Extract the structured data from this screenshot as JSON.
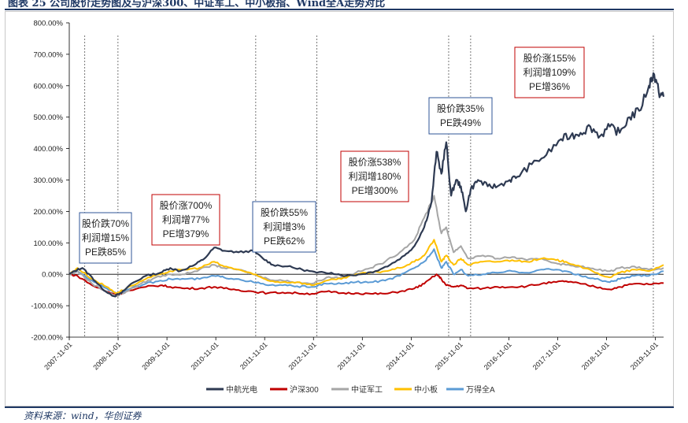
{
  "title": "图表 25 公司股价走势图及与沪深300、中证军工、中小板指、Wind全A走势对比",
  "source": "资料来源：wind，华创证券",
  "colors": {
    "zhonghang": "#2e3a52",
    "hushen300": "#c00000",
    "junggong": "#a6a6a6",
    "zhongxiao": "#ffc000",
    "wande": "#5b9bd5",
    "annotation_red": "#c00000",
    "annotation_blue": "#2f5597"
  },
  "chart_data": {
    "type": "line",
    "title": "",
    "xlabel": "",
    "ylabel": "",
    "ylim": [
      -200,
      800
    ],
    "yticks": [
      -200,
      -100,
      0,
      100,
      200,
      300,
      400,
      500,
      600,
      700,
      800
    ],
    "ytick_labels": [
      "-200.00%",
      "-100.00%",
      "0.00%",
      "100.00%",
      "200.00%",
      "300.00%",
      "400.00%",
      "500.00%",
      "600.00%",
      "700.00%",
      "800.00%"
    ],
    "xlim": [
      2007.833,
      2020.0
    ],
    "xticks": [
      2007.833,
      2008.833,
      2009.833,
      2010.833,
      2011.833,
      2012.833,
      2013.833,
      2014.833,
      2015.833,
      2016.833,
      2017.833,
      2018.833,
      2019.833
    ],
    "xtick_labels": [
      "2007-11-01",
      "2008-11-01",
      "2009-11-01",
      "2010-11-01",
      "2011-11-01",
      "2012-11-01",
      "2013-11-01",
      "2014-11-01",
      "2015-11-01",
      "2016-11-01",
      "2017-11-01",
      "2018-11-01",
      "2019-11-01"
    ],
    "vlines": [
      2008.15,
      2008.83,
      2011.65,
      2012.9,
      2015.6,
      2016.05,
      2019.79
    ],
    "legend": [
      "中航光电",
      "沪深300",
      "中证军工",
      "中小板",
      "万得全A"
    ],
    "series": [
      {
        "name": "中航光电",
        "color_key": "zhonghang",
        "points": [
          [
            2007.833,
            0
          ],
          [
            2008.0,
            15
          ],
          [
            2008.1,
            20
          ],
          [
            2008.3,
            -10
          ],
          [
            2008.5,
            -45
          ],
          [
            2008.75,
            -70
          ],
          [
            2008.9,
            -60
          ],
          [
            2009.1,
            -30
          ],
          [
            2009.4,
            -5
          ],
          [
            2009.7,
            5
          ],
          [
            2009.9,
            20
          ],
          [
            2010.1,
            10
          ],
          [
            2010.4,
            30
          ],
          [
            2010.6,
            50
          ],
          [
            2010.8,
            85
          ],
          [
            2011.0,
            75
          ],
          [
            2011.3,
            70
          ],
          [
            2011.6,
            75
          ],
          [
            2011.8,
            50
          ],
          [
            2012.0,
            30
          ],
          [
            2012.3,
            25
          ],
          [
            2012.6,
            15
          ],
          [
            2012.9,
            5
          ],
          [
            2013.2,
            5
          ],
          [
            2013.5,
            -5
          ],
          [
            2013.8,
            0
          ],
          [
            2014.1,
            10
          ],
          [
            2014.4,
            30
          ],
          [
            2014.7,
            60
          ],
          [
            2014.9,
            90
          ],
          [
            2015.1,
            150
          ],
          [
            2015.25,
            230
          ],
          [
            2015.35,
            390
          ],
          [
            2015.45,
            320
          ],
          [
            2015.55,
            420
          ],
          [
            2015.65,
            250
          ],
          [
            2015.75,
            300
          ],
          [
            2015.85,
            280
          ],
          [
            2015.95,
            200
          ],
          [
            2016.05,
            270
          ],
          [
            2016.2,
            300
          ],
          [
            2016.4,
            280
          ],
          [
            2016.6,
            280
          ],
          [
            2016.85,
            300
          ],
          [
            2017.0,
            310
          ],
          [
            2017.3,
            350
          ],
          [
            2017.6,
            380
          ],
          [
            2017.9,
            430
          ],
          [
            2018.1,
            440
          ],
          [
            2018.3,
            450
          ],
          [
            2018.5,
            470
          ],
          [
            2018.7,
            440
          ],
          [
            2018.9,
            470
          ],
          [
            2019.1,
            450
          ],
          [
            2019.3,
            500
          ],
          [
            2019.5,
            520
          ],
          [
            2019.7,
            600
          ],
          [
            2019.79,
            640
          ],
          [
            2019.9,
            580
          ],
          [
            2020.0,
            565
          ]
        ]
      },
      {
        "name": "沪深300",
        "color_key": "hushen300",
        "points": [
          [
            2007.833,
            0
          ],
          [
            2008.0,
            -5
          ],
          [
            2008.3,
            -35
          ],
          [
            2008.6,
            -55
          ],
          [
            2008.8,
            -65
          ],
          [
            2009.0,
            -55
          ],
          [
            2009.4,
            -40
          ],
          [
            2009.7,
            -35
          ],
          [
            2009.9,
            -40
          ],
          [
            2010.2,
            -45
          ],
          [
            2010.5,
            -45
          ],
          [
            2010.8,
            -40
          ],
          [
            2011.0,
            -45
          ],
          [
            2011.3,
            -50
          ],
          [
            2011.6,
            -55
          ],
          [
            2011.9,
            -60
          ],
          [
            2012.2,
            -58
          ],
          [
            2012.5,
            -60
          ],
          [
            2012.8,
            -62
          ],
          [
            2013.1,
            -55
          ],
          [
            2013.4,
            -60
          ],
          [
            2013.7,
            -60
          ],
          [
            2014.0,
            -62
          ],
          [
            2014.3,
            -62
          ],
          [
            2014.6,
            -55
          ],
          [
            2014.9,
            -45
          ],
          [
            2015.1,
            -30
          ],
          [
            2015.35,
            0
          ],
          [
            2015.45,
            -15
          ],
          [
            2015.55,
            -35
          ],
          [
            2015.7,
            -40
          ],
          [
            2015.85,
            -35
          ],
          [
            2016.0,
            -45
          ],
          [
            2016.3,
            -45
          ],
          [
            2016.6,
            -40
          ],
          [
            2016.9,
            -40
          ],
          [
            2017.2,
            -38
          ],
          [
            2017.5,
            -30
          ],
          [
            2017.8,
            -25
          ],
          [
            2018.0,
            -22
          ],
          [
            2018.3,
            -30
          ],
          [
            2018.6,
            -40
          ],
          [
            2018.9,
            -48
          ],
          [
            2019.1,
            -40
          ],
          [
            2019.4,
            -30
          ],
          [
            2019.7,
            -32
          ],
          [
            2020.0,
            -28
          ]
        ]
      },
      {
        "name": "中证军工",
        "color_key": "junggong",
        "points": [
          [
            2007.833,
            0
          ],
          [
            2008.0,
            10
          ],
          [
            2008.3,
            -30
          ],
          [
            2008.6,
            -55
          ],
          [
            2008.8,
            -70
          ],
          [
            2009.0,
            -55
          ],
          [
            2009.3,
            -30
          ],
          [
            2009.6,
            -10
          ],
          [
            2009.9,
            0
          ],
          [
            2010.2,
            0
          ],
          [
            2010.5,
            15
          ],
          [
            2010.8,
            30
          ],
          [
            2011.0,
            20
          ],
          [
            2011.3,
            15
          ],
          [
            2011.6,
            0
          ],
          [
            2011.9,
            -15
          ],
          [
            2012.2,
            -20
          ],
          [
            2012.5,
            -25
          ],
          [
            2012.8,
            -30
          ],
          [
            2013.1,
            -10
          ],
          [
            2013.4,
            -10
          ],
          [
            2013.7,
            5
          ],
          [
            2014.0,
            20
          ],
          [
            2014.3,
            40
          ],
          [
            2014.6,
            70
          ],
          [
            2014.9,
            110
          ],
          [
            2015.1,
            180
          ],
          [
            2015.3,
            250
          ],
          [
            2015.45,
            130
          ],
          [
            2015.55,
            150
          ],
          [
            2015.7,
            70
          ],
          [
            2015.85,
            90
          ],
          [
            2016.0,
            50
          ],
          [
            2016.3,
            60
          ],
          [
            2016.6,
            50
          ],
          [
            2016.9,
            55
          ],
          [
            2017.2,
            45
          ],
          [
            2017.5,
            50
          ],
          [
            2017.8,
            35
          ],
          [
            2018.0,
            30
          ],
          [
            2018.3,
            25
          ],
          [
            2018.6,
            15
          ],
          [
            2018.9,
            10
          ],
          [
            2019.1,
            20
          ],
          [
            2019.4,
            25
          ],
          [
            2019.7,
            15
          ],
          [
            2020.0,
            20
          ]
        ]
      },
      {
        "name": "中小板",
        "color_key": "zhongxiao",
        "points": [
          [
            2007.833,
            0
          ],
          [
            2008.0,
            20
          ],
          [
            2008.3,
            -15
          ],
          [
            2008.6,
            -40
          ],
          [
            2008.8,
            -60
          ],
          [
            2009.0,
            -45
          ],
          [
            2009.4,
            -15
          ],
          [
            2009.7,
            0
          ],
          [
            2009.9,
            10
          ],
          [
            2010.2,
            15
          ],
          [
            2010.5,
            20
          ],
          [
            2010.8,
            40
          ],
          [
            2011.0,
            25
          ],
          [
            2011.3,
            15
          ],
          [
            2011.6,
            0
          ],
          [
            2011.9,
            -20
          ],
          [
            2012.2,
            -25
          ],
          [
            2012.5,
            -25
          ],
          [
            2012.8,
            -35
          ],
          [
            2013.1,
            -20
          ],
          [
            2013.4,
            -15
          ],
          [
            2013.7,
            0
          ],
          [
            2014.0,
            5
          ],
          [
            2014.3,
            10
          ],
          [
            2014.6,
            20
          ],
          [
            2014.9,
            40
          ],
          [
            2015.1,
            60
          ],
          [
            2015.3,
            110
          ],
          [
            2015.45,
            40
          ],
          [
            2015.55,
            60
          ],
          [
            2015.7,
            30
          ],
          [
            2015.85,
            50
          ],
          [
            2016.0,
            30
          ],
          [
            2016.3,
            40
          ],
          [
            2016.6,
            40
          ],
          [
            2016.9,
            45
          ],
          [
            2017.2,
            40
          ],
          [
            2017.5,
            50
          ],
          [
            2017.8,
            45
          ],
          [
            2018.0,
            40
          ],
          [
            2018.3,
            25
          ],
          [
            2018.6,
            5
          ],
          [
            2018.9,
            -10
          ],
          [
            2019.1,
            5
          ],
          [
            2019.4,
            15
          ],
          [
            2019.7,
            10
          ],
          [
            2020.0,
            30
          ]
        ]
      },
      {
        "name": "万得全A",
        "color_key": "wande",
        "points": [
          [
            2007.833,
            0
          ],
          [
            2008.0,
            10
          ],
          [
            2008.3,
            -20
          ],
          [
            2008.6,
            -45
          ],
          [
            2008.8,
            -60
          ],
          [
            2009.0,
            -50
          ],
          [
            2009.4,
            -30
          ],
          [
            2009.7,
            -20
          ],
          [
            2009.9,
            -15
          ],
          [
            2010.2,
            -15
          ],
          [
            2010.5,
            -15
          ],
          [
            2010.8,
            -5
          ],
          [
            2011.0,
            -10
          ],
          [
            2011.3,
            -15
          ],
          [
            2011.6,
            -25
          ],
          [
            2011.9,
            -35
          ],
          [
            2012.2,
            -35
          ],
          [
            2012.5,
            -38
          ],
          [
            2012.8,
            -40
          ],
          [
            2013.1,
            -30
          ],
          [
            2013.4,
            -30
          ],
          [
            2013.7,
            -25
          ],
          [
            2014.0,
            -25
          ],
          [
            2014.3,
            -20
          ],
          [
            2014.6,
            -5
          ],
          [
            2014.9,
            20
          ],
          [
            2015.1,
            40
          ],
          [
            2015.3,
            80
          ],
          [
            2015.45,
            20
          ],
          [
            2015.55,
            40
          ],
          [
            2015.7,
            0
          ],
          [
            2015.85,
            15
          ],
          [
            2016.0,
            -5
          ],
          [
            2016.3,
            0
          ],
          [
            2016.6,
            5
          ],
          [
            2016.9,
            10
          ],
          [
            2017.2,
            5
          ],
          [
            2017.5,
            15
          ],
          [
            2017.8,
            15
          ],
          [
            2018.0,
            10
          ],
          [
            2018.3,
            -5
          ],
          [
            2018.6,
            -15
          ],
          [
            2018.9,
            -25
          ],
          [
            2019.1,
            -15
          ],
          [
            2019.4,
            -5
          ],
          [
            2019.7,
            -5
          ],
          [
            2020.0,
            10
          ]
        ]
      }
    ],
    "annotations": [
      {
        "lines": [
          "股价跌70%",
          "利润增15%",
          "PE跌85%"
        ],
        "color_key": "annotation_blue"
      },
      {
        "lines": [
          "股价涨700%",
          "利润增77%",
          "PE增379%"
        ],
        "color_key": "annotation_red"
      },
      {
        "lines": [
          "股价跌55%",
          "利润增3%",
          "PE跌62%"
        ],
        "color_key": "annotation_blue"
      },
      {
        "lines": [
          "股价涨538%",
          "利润增180%",
          "PE增300%"
        ],
        "color_key": "annotation_red"
      },
      {
        "lines": [
          "股价跌35%",
          "PE跌49%"
        ],
        "color_key": "annotation_blue"
      },
      {
        "lines": [
          "股价涨155%",
          "利润增109%",
          "PE增36%"
        ],
        "color_key": "annotation_red"
      }
    ]
  }
}
